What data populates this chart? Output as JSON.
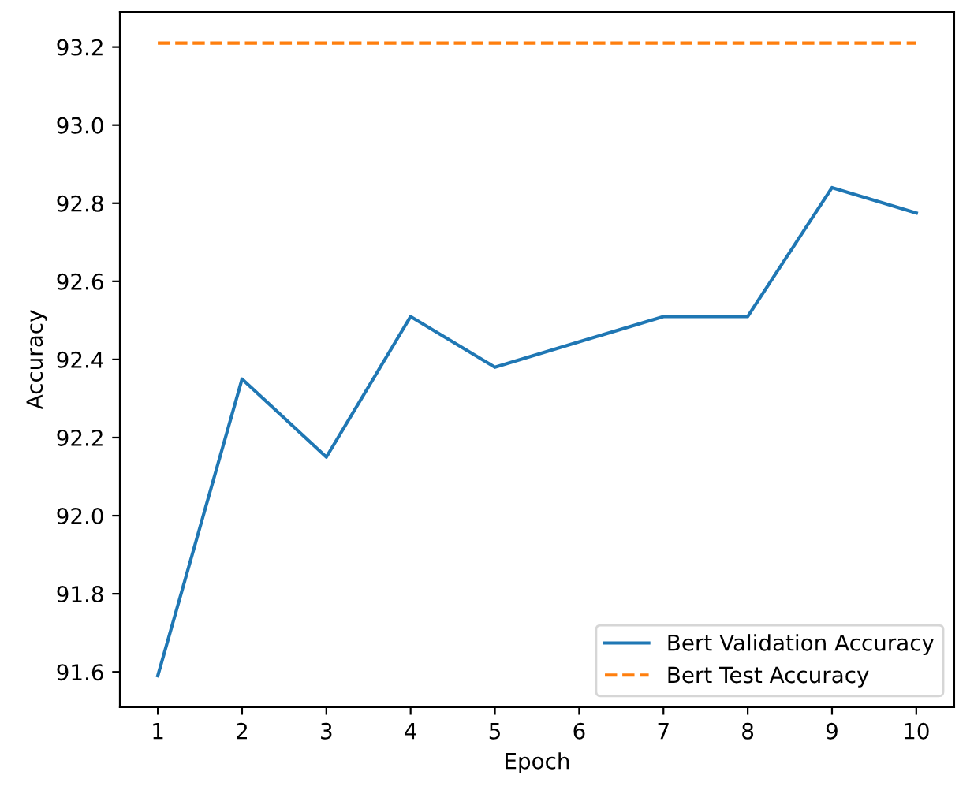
{
  "chart_data": {
    "type": "line",
    "xlabel": "Epoch",
    "ylabel": "Accuracy",
    "x": [
      1,
      2,
      3,
      4,
      5,
      6,
      7,
      8,
      9,
      10
    ],
    "series": [
      {
        "name": "Bert Validation Accuracy",
        "color": "#1f77b4",
        "line_style": "solid",
        "values": [
          91.59,
          92.35,
          92.15,
          92.51,
          92.38,
          92.445,
          92.51,
          92.51,
          92.84,
          92.775
        ]
      },
      {
        "name": "Bert Test Accuracy",
        "color": "#ff7f0e",
        "line_style": "dashed",
        "values": [
          93.21,
          93.21,
          93.21,
          93.21,
          93.21,
          93.21,
          93.21,
          93.21,
          93.21,
          93.21
        ]
      }
    ],
    "xlim": [
      0.55,
      10.45
    ],
    "xticks": [
      1,
      2,
      3,
      4,
      5,
      6,
      7,
      8,
      9,
      10
    ],
    "ylim": [
      91.51,
      93.29
    ],
    "yticks": [
      {
        "value": 91.6,
        "label": "91.6"
      },
      {
        "value": 91.8,
        "label": "91.8"
      },
      {
        "value": 92.0,
        "label": "92.0"
      },
      {
        "value": 92.2,
        "label": "92.2"
      },
      {
        "value": 92.4,
        "label": "92.4"
      },
      {
        "value": 92.6,
        "label": "92.6"
      },
      {
        "value": 92.8,
        "label": "92.8"
      },
      {
        "value": 93.0,
        "label": "93.0"
      },
      {
        "value": 93.2,
        "label": "93.2"
      }
    ],
    "legend": "lower right",
    "grid": false,
    "marker": "none"
  }
}
